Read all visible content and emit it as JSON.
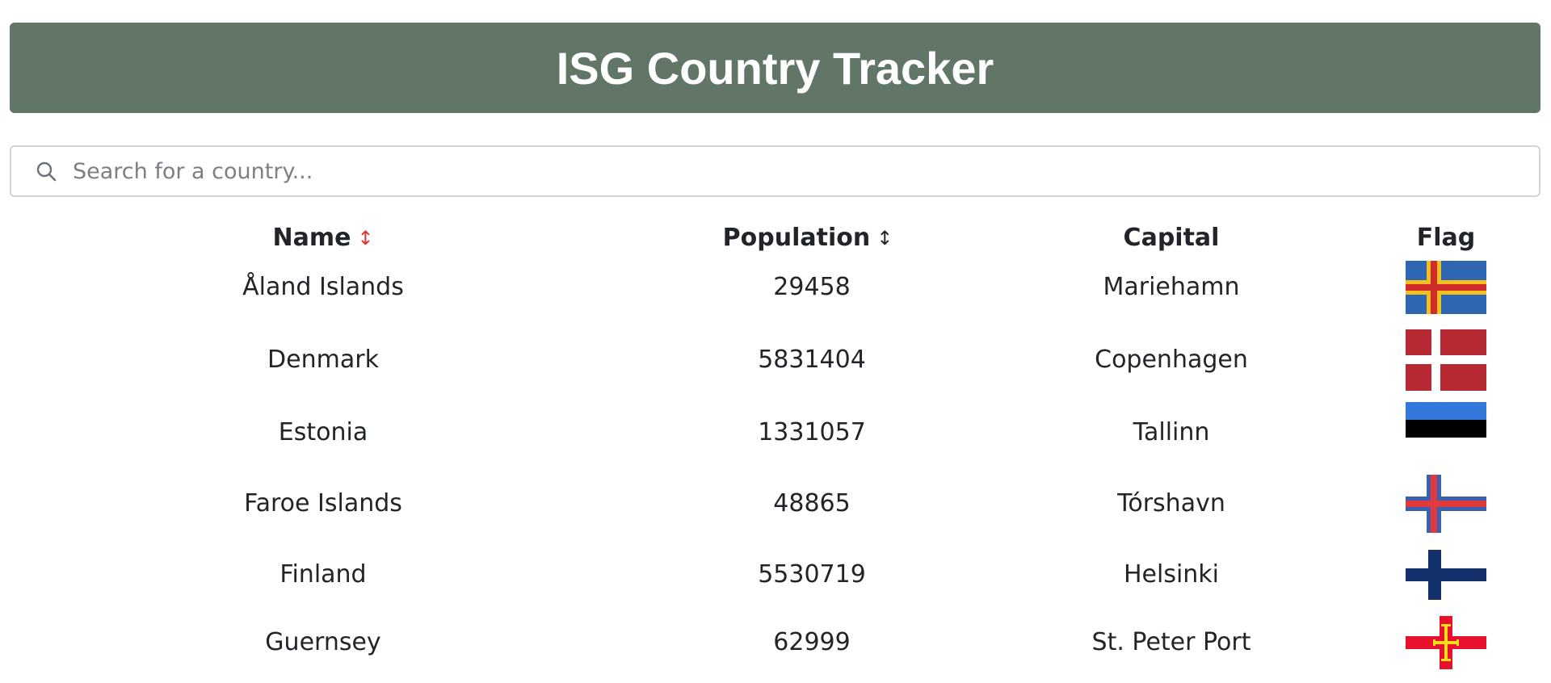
{
  "app": {
    "title": "ISG Country Tracker"
  },
  "search": {
    "placeholder": "Search for a country...",
    "value": "",
    "icon": "search-icon"
  },
  "table": {
    "headers": {
      "name": "Name",
      "population": "Population",
      "capital": "Capital",
      "flag": "Flag"
    },
    "sort_glyph": "↕",
    "sort_state": {
      "name": "active",
      "population": "inactive"
    },
    "rows": [
      {
        "name": "Åland Islands",
        "population": "29458",
        "capital": "Mariehamn",
        "flag": "aland-flag"
      },
      {
        "name": "Denmark",
        "population": "5831404",
        "capital": "Copenhagen",
        "flag": "denmark-flag"
      },
      {
        "name": "Estonia",
        "population": "1331057",
        "capital": "Tallinn",
        "flag": "estonia-flag"
      },
      {
        "name": "Faroe Islands",
        "population": "48865",
        "capital": "Tórshavn",
        "flag": "faroe-islands-flag"
      },
      {
        "name": "Finland",
        "population": "5530719",
        "capital": "Helsinki",
        "flag": "finland-flag"
      },
      {
        "name": "Guernsey",
        "population": "62999",
        "capital": "St. Peter Port",
        "flag": "guernsey-flag"
      }
    ]
  },
  "colors": {
    "header_bg": "#627668",
    "sort_active": "#d9352b"
  }
}
